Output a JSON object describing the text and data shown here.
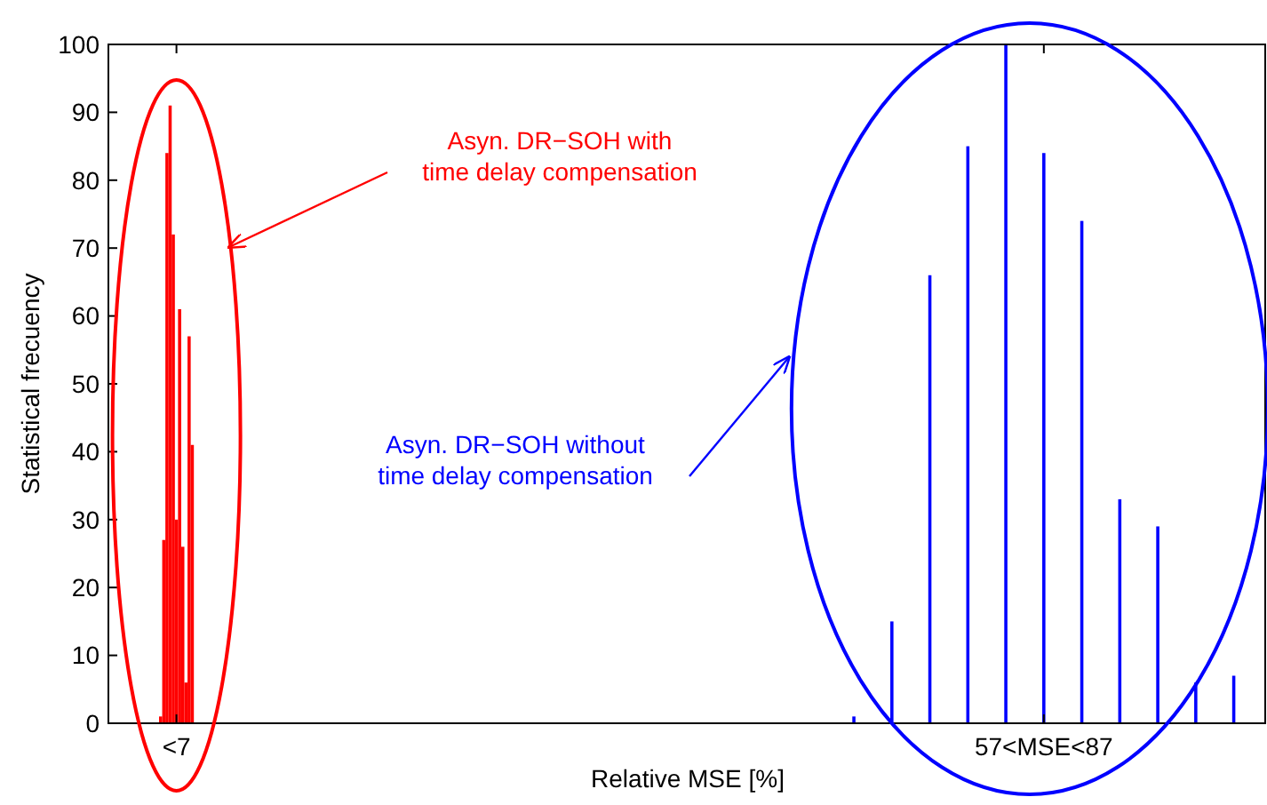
{
  "chart_data": {
    "type": "bar",
    "xlabel": "Relative MSE [%]",
    "ylabel": "Statistical frecuency",
    "categories": [
      null,
      null,
      null,
      null,
      null,
      null,
      null,
      null,
      null,
      null,
      null,
      null,
      null,
      null,
      null,
      null,
      null,
      null,
      null,
      null,
      null,
      "<7",
      null,
      null,
      null,
      null,
      null,
      null,
      null,
      null,
      null,
      null,
      null,
      null,
      null,
      null,
      null,
      null,
      null,
      null,
      null,
      null,
      null,
      null,
      null,
      null,
      null,
      null,
      null,
      null,
      null,
      null,
      null,
      null,
      null,
      null,
      null,
      null,
      null,
      null,
      null,
      null,
      null,
      null,
      null,
      null,
      null,
      null,
      null,
      null,
      null,
      null,
      null,
      null,
      null,
      null,
      null,
      null,
      null,
      null,
      null,
      null,
      null,
      null,
      null,
      null,
      null,
      null,
      null,
      null,
      null,
      null,
      null,
      null,
      null,
      null,
      null,
      null,
      null,
      null,
      null,
      null,
      null,
      null,
      null,
      null,
      null,
      null,
      null,
      null,
      null,
      null,
      null,
      null,
      null,
      null,
      null,
      null,
      null,
      null,
      null,
      null,
      null,
      null,
      null,
      null,
      null,
      null,
      null,
      null,
      null,
      null,
      null,
      null,
      null,
      null,
      null,
      null,
      null,
      null,
      null,
      null,
      null,
      null,
      null,
      null,
      null,
      null,
      null,
      null,
      null,
      null,
      null,
      null,
      null,
      null,
      null,
      null,
      null,
      null,
      null,
      null,
      null,
      null,
      null,
      null,
      null,
      null,
      null,
      null,
      null,
      null,
      null,
      null,
      null,
      null,
      null,
      null,
      null,
      null,
      null,
      null,
      null,
      null,
      null,
      null,
      null,
      null,
      null,
      null,
      null,
      null,
      null,
      null,
      null,
      null,
      null,
      null,
      null,
      null,
      null,
      null,
      null,
      null,
      null,
      null,
      null,
      null,
      null,
      null,
      null,
      null,
      null,
      null,
      null,
      null,
      null,
      null,
      null,
      null,
      null,
      null,
      null,
      null,
      null,
      null,
      null,
      null,
      null,
      null,
      null,
      null,
      null,
      null,
      null,
      null,
      null,
      null,
      null,
      null,
      null,
      null,
      null,
      null,
      null,
      null,
      null,
      null,
      null,
      null,
      null,
      null,
      null,
      null,
      null,
      null,
      null,
      null,
      null,
      null,
      null,
      null,
      null,
      null,
      null,
      null,
      null,
      null,
      null,
      null,
      null,
      null,
      null,
      null,
      null,
      null,
      null,
      null,
      null,
      null,
      null,
      null,
      null,
      null,
      null,
      null,
      null,
      null,
      null,
      null,
      null,
      null,
      null,
      null,
      null,
      "57<MSE<87",
      null,
      null,
      null,
      null,
      null,
      null,
      null,
      null,
      null,
      null,
      null,
      null,
      null,
      null,
      null,
      null,
      null,
      null,
      null,
      null,
      null,
      null,
      null,
      null,
      null,
      null,
      null,
      null,
      null,
      null,
      null,
      null,
      null,
      null,
      null,
      null,
      null,
      null,
      null,
      null,
      null,
      null,
      null,
      null,
      null,
      null,
      null,
      null,
      null,
      null,
      null,
      null,
      null,
      null,
      null,
      null,
      null,
      null,
      null,
      null,
      null,
      null,
      null,
      null,
      null,
      null,
      null,
      null,
      null,
      null
    ],
    "series": [
      {
        "color": "#ff0000",
        "values": [
          null,
          null,
          null,
          null,
          null,
          null,
          null,
          null,
          null,
          null,
          null,
          null,
          null,
          null,
          null,
          null,
          1,
          27,
          84,
          91,
          72,
          30,
          61,
          26,
          6,
          57,
          41,
          null,
          null,
          null,
          null,
          null,
          null,
          null,
          null,
          null,
          null,
          null,
          null,
          null,
          null,
          null,
          null,
          null,
          null,
          null,
          null,
          null,
          null,
          null,
          null,
          null,
          null,
          null,
          null,
          null,
          null,
          null,
          null,
          null,
          null,
          null,
          null,
          null,
          null,
          null,
          null,
          null,
          null,
          null,
          null,
          null,
          null,
          null,
          null,
          null,
          null,
          null,
          null,
          null,
          null,
          null,
          null,
          null,
          null,
          null,
          null,
          null,
          null,
          null,
          null,
          null,
          null,
          null,
          null,
          null,
          null,
          null,
          null,
          null,
          null,
          null,
          null,
          null,
          null,
          null,
          null,
          null,
          null,
          null,
          null,
          null,
          null,
          null,
          null,
          null,
          null,
          null,
          null,
          null,
          null,
          null,
          null,
          null,
          null,
          null,
          null,
          null,
          null,
          null,
          null,
          null,
          null,
          null,
          null,
          null,
          null,
          null,
          null,
          null,
          null,
          null,
          null,
          null,
          null,
          null,
          null,
          null,
          null,
          null,
          null,
          null,
          null,
          null,
          null,
          null,
          null,
          null,
          null,
          null,
          null,
          null,
          null,
          null,
          null,
          null,
          null,
          null,
          null,
          null,
          null,
          null,
          null,
          null,
          null,
          null,
          null,
          null,
          null,
          null,
          null,
          null,
          null,
          null,
          null,
          null,
          null,
          null,
          null,
          null,
          null,
          null,
          null,
          null,
          null,
          null,
          null,
          null,
          null,
          null,
          null,
          null,
          null,
          null,
          null,
          null,
          null,
          null,
          null,
          null,
          null,
          null,
          null,
          null,
          null,
          null,
          null,
          null,
          null,
          null,
          null,
          null,
          null,
          null,
          null,
          null,
          null,
          null,
          null,
          null,
          null,
          null,
          null,
          null,
          null,
          null,
          null,
          null,
          null,
          null,
          null,
          null,
          null,
          null,
          null,
          null,
          null,
          null,
          null,
          null,
          null,
          null,
          null,
          null,
          null,
          null,
          null,
          null,
          null,
          null,
          null,
          null,
          null,
          null,
          null,
          null,
          null,
          null,
          null,
          null,
          null,
          null,
          null,
          null,
          null,
          null,
          null,
          null,
          null,
          null,
          null,
          null,
          null,
          null,
          null,
          null,
          null,
          null,
          null,
          null,
          null,
          null,
          null,
          null,
          null,
          null,
          null,
          null,
          null,
          null,
          null,
          null,
          null,
          null,
          null,
          null,
          null,
          null,
          null,
          null,
          null,
          null,
          null,
          null,
          null,
          null,
          null,
          null,
          null,
          null,
          null,
          null,
          null,
          null,
          null,
          null,
          null,
          null,
          null,
          null,
          null,
          null,
          null,
          null,
          null,
          null,
          null,
          null,
          null,
          null,
          null,
          null,
          null,
          null,
          null,
          null,
          null,
          null,
          null,
          null,
          null,
          null,
          null,
          null,
          null,
          null,
          null,
          null,
          null,
          null,
          null,
          null,
          null,
          null,
          null,
          null
        ]
      },
      {
        "color": "#0000ff",
        "values": [
          null,
          null,
          null,
          null,
          null,
          null,
          null,
          null,
          null,
          null,
          null,
          null,
          null,
          null,
          null,
          null,
          null,
          null,
          null,
          null,
          null,
          null,
          null,
          null,
          null,
          null,
          null,
          null,
          null,
          null,
          null,
          null,
          null,
          null,
          null,
          null,
          null,
          null,
          null,
          null,
          null,
          null,
          null,
          null,
          null,
          null,
          null,
          null,
          null,
          null,
          null,
          null,
          null,
          null,
          null,
          null,
          null,
          null,
          null,
          null,
          null,
          null,
          null,
          null,
          null,
          null,
          null,
          null,
          null,
          null,
          null,
          null,
          null,
          null,
          null,
          null,
          null,
          null,
          null,
          null,
          null,
          null,
          null,
          null,
          null,
          null,
          null,
          null,
          null,
          null,
          null,
          null,
          null,
          null,
          null,
          null,
          null,
          null,
          null,
          null,
          null,
          null,
          null,
          null,
          null,
          null,
          null,
          null,
          null,
          null,
          null,
          null,
          null,
          null,
          null,
          null,
          null,
          null,
          null,
          null,
          null,
          null,
          null,
          null,
          null,
          null,
          null,
          null,
          null,
          null,
          null,
          null,
          null,
          null,
          null,
          null,
          null,
          null,
          null,
          null,
          null,
          null,
          null,
          null,
          null,
          null,
          null,
          null,
          null,
          null,
          null,
          null,
          null,
          null,
          null,
          null,
          null,
          null,
          null,
          null,
          null,
          null,
          null,
          null,
          null,
          null,
          null,
          null,
          null,
          null,
          null,
          null,
          null,
          null,
          null,
          null,
          null,
          null,
          null,
          null,
          null,
          null,
          null,
          null,
          null,
          null,
          null,
          null,
          null,
          null,
          null,
          null,
          null,
          null,
          null,
          null,
          null,
          null,
          null,
          null,
          null,
          null,
          null,
          null,
          null,
          null,
          null,
          null,
          null,
          null,
          null,
          null,
          null,
          null,
          null,
          null,
          null,
          null,
          null,
          null,
          null,
          null,
          null,
          null,
          null,
          null,
          null,
          null,
          null,
          null,
          null,
          null,
          null,
          null,
          null,
          1,
          null,
          null,
          null,
          null,
          null,
          null,
          null,
          null,
          null,
          null,
          null,
          15,
          null,
          null,
          null,
          null,
          null,
          null,
          null,
          null,
          null,
          null,
          null,
          66,
          null,
          null,
          null,
          null,
          null,
          null,
          null,
          null,
          null,
          null,
          null,
          85,
          null,
          null,
          null,
          null,
          null,
          null,
          null,
          null,
          null,
          null,
          null,
          100,
          null,
          null,
          null,
          null,
          null,
          null,
          null,
          null,
          null,
          null,
          null,
          84,
          null,
          null,
          null,
          null,
          null,
          null,
          null,
          null,
          null,
          null,
          null,
          74,
          null,
          null,
          null,
          null,
          null,
          null,
          null,
          null,
          null,
          null,
          null,
          33,
          null,
          null,
          null,
          null,
          null,
          null,
          null,
          null,
          null,
          null,
          null,
          29,
          null,
          null,
          null,
          null,
          null,
          null,
          null,
          null,
          null,
          null,
          null,
          6,
          null,
          null,
          null,
          null,
          null,
          null,
          null,
          null,
          null,
          null,
          null,
          7,
          null,
          null,
          null,
          null,
          null,
          null,
          null,
          null,
          null,
          null
        ]
      }
    ],
    "ylim": [
      0,
      100
    ],
    "yticks": [
      0,
      10,
      20,
      30,
      40,
      50,
      60,
      70,
      80,
      90,
      100
    ],
    "grid": false,
    "annotations": [
      "Asyn. DR−SOH with\ntime delay compensation",
      "Asyn. DR−SOH without\ntime delay compensation"
    ]
  }
}
